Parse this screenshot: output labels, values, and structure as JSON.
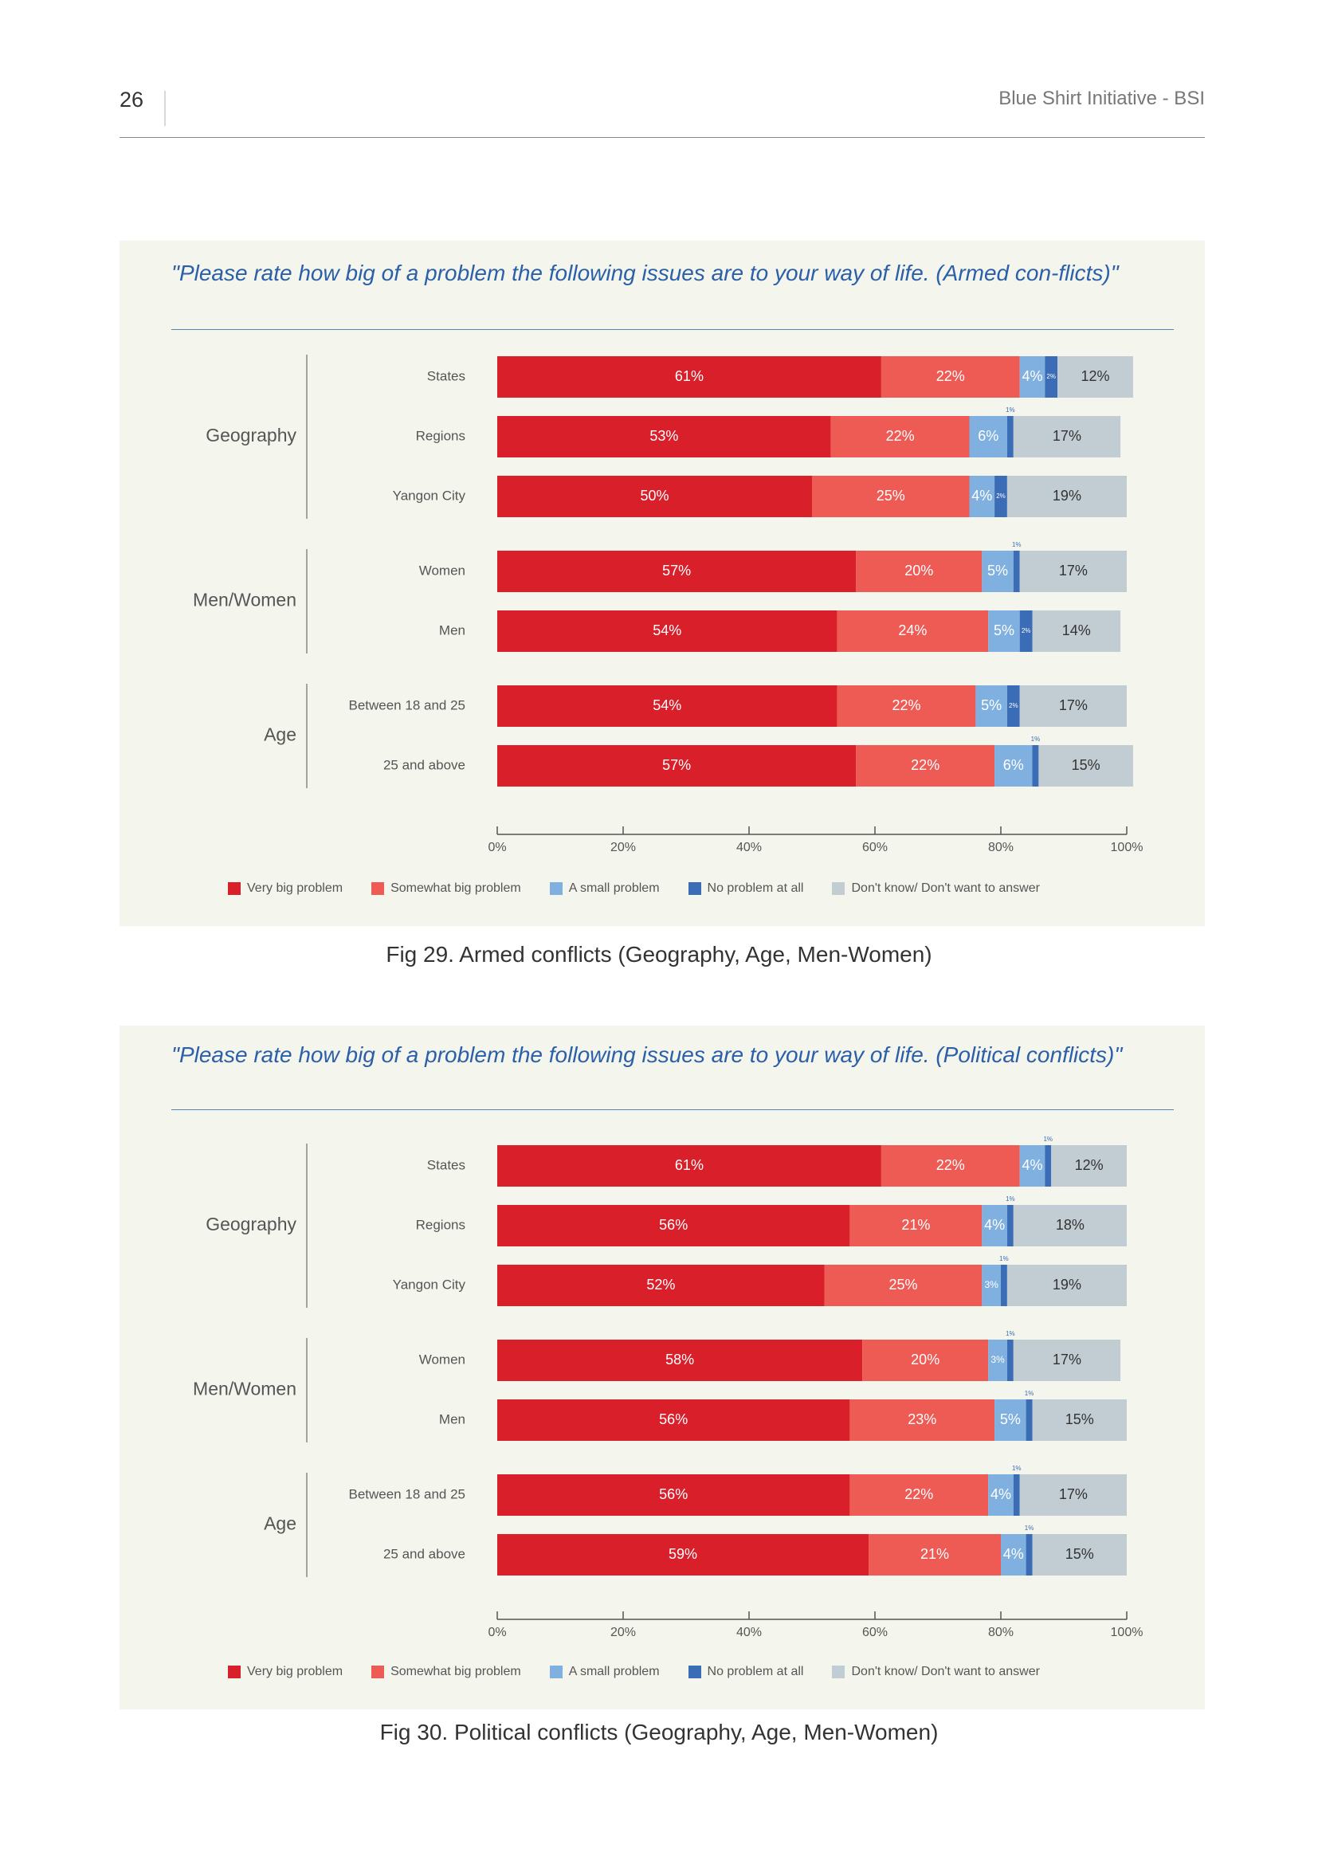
{
  "header": {
    "page_number": "26",
    "title": "Blue Shirt Initiative - BSI"
  },
  "colors": {
    "very_big": "#d81f2a",
    "somewhat_big": "#ee5a54",
    "small": "#7fb0df",
    "no_problem": "#3a6db5",
    "dont_know": "#c2ccd3",
    "panel_bg": "#f4f6ee",
    "question_text": "#2b5fa8"
  },
  "legend": [
    "Very big problem",
    "Somewhat big problem",
    "A small problem",
    "No problem at all",
    "Don't know/ Don't want to answer"
  ],
  "charts": [
    {
      "question": "\"Please rate how big of a problem the following issues are to your way of life. (Armed con-flicts)\"",
      "caption": "Fig 29. Armed conflicts (Geography, Age, Men-Women)"
    },
    {
      "question": "\"Please rate how big of a problem the following issues are to your way of life. (Political conflicts)\"",
      "caption": "Fig 30. Political conflicts (Geography, Age, Men-Women)"
    }
  ],
  "chart_data": [
    {
      "type": "bar",
      "orientation": "horizontal",
      "stacked": true,
      "title": "\"Please rate how big of a problem the following issues are to your way of life. (Armed con-flicts)\"",
      "xlim": [
        0,
        100
      ],
      "x_ticks": [
        "0%",
        "20%",
        "40%",
        "60%",
        "80%",
        "100%"
      ],
      "series_names": [
        "Very big problem",
        "Somewhat big problem",
        "A small problem",
        "No problem at all",
        "Don't know/ Don't want to answer"
      ],
      "groups": [
        {
          "name": "Geography",
          "rows": [
            {
              "label": "States",
              "values": [
                61,
                22,
                4,
                2,
                12
              ],
              "labels": [
                "61%",
                "22%",
                "4%",
                "2%",
                "12%"
              ]
            },
            {
              "label": "Regions",
              "values": [
                53,
                22,
                6,
                1,
                17
              ],
              "labels": [
                "53%",
                "22%",
                "6%",
                "1%",
                "17%"
              ]
            },
            {
              "label": "Yangon City",
              "values": [
                50,
                25,
                4,
                2,
                19
              ],
              "labels": [
                "50%",
                "25%",
                "4%",
                "2%",
                "19%"
              ]
            }
          ]
        },
        {
          "name": "Men/Women",
          "rows": [
            {
              "label": "Women",
              "values": [
                57,
                20,
                5,
                1,
                17
              ],
              "labels": [
                "57%",
                "20%",
                "5%",
                "1%",
                "17%"
              ]
            },
            {
              "label": "Men",
              "values": [
                54,
                24,
                5,
                2,
                14
              ],
              "labels": [
                "54%",
                "24%",
                "5%",
                "2%",
                "14%"
              ]
            }
          ]
        },
        {
          "name": "Age",
          "rows": [
            {
              "label": "Between 18 and 25",
              "values": [
                54,
                22,
                5,
                2,
                17
              ],
              "labels": [
                "54%",
                "22%",
                "5%",
                "2%",
                "17%"
              ]
            },
            {
              "label": "25 and above",
              "values": [
                57,
                22,
                6,
                1,
                15
              ],
              "labels": [
                "57%",
                "22%",
                "6%",
                "1%",
                "15%"
              ]
            }
          ]
        }
      ],
      "legend_position": "bottom"
    },
    {
      "type": "bar",
      "orientation": "horizontal",
      "stacked": true,
      "title": "\"Please rate how big of a problem the following issues are to your way of life. (Political conflicts)\"",
      "xlim": [
        0,
        100
      ],
      "x_ticks": [
        "0%",
        "20%",
        "40%",
        "60%",
        "80%",
        "100%"
      ],
      "series_names": [
        "Very big problem",
        "Somewhat big problem",
        "A small problem",
        "No problem at all",
        "Don't know/ Don't want to answer"
      ],
      "groups": [
        {
          "name": "Geography",
          "rows": [
            {
              "label": "States",
              "values": [
                61,
                22,
                4,
                1,
                12
              ],
              "labels": [
                "61%",
                "22%",
                "4%",
                "1%",
                "12%"
              ]
            },
            {
              "label": "Regions",
              "values": [
                56,
                21,
                4,
                1,
                18
              ],
              "labels": [
                "56%",
                "21%",
                "4%",
                "1%",
                "18%"
              ]
            },
            {
              "label": "Yangon City",
              "values": [
                52,
                25,
                3,
                1,
                19
              ],
              "labels": [
                "52%",
                "25%",
                "3%",
                "1%",
                "19%"
              ]
            }
          ]
        },
        {
          "name": "Men/Women",
          "rows": [
            {
              "label": "Women",
              "values": [
                58,
                20,
                3,
                1,
                17
              ],
              "labels": [
                "58%",
                "20%",
                "3%",
                "1%",
                "17%"
              ]
            },
            {
              "label": "Men",
              "values": [
                56,
                23,
                5,
                1,
                15
              ],
              "labels": [
                "56%",
                "23%",
                "5%",
                "1%",
                "15%"
              ]
            }
          ]
        },
        {
          "name": "Age",
          "rows": [
            {
              "label": "Between 18 and 25",
              "values": [
                56,
                22,
                4,
                1,
                17
              ],
              "labels": [
                "56%",
                "22%",
                "4%",
                "1%",
                "17%"
              ]
            },
            {
              "label": "25 and above",
              "values": [
                59,
                21,
                4,
                1,
                15
              ],
              "labels": [
                "59%",
                "21%",
                "4%",
                "1%",
                "15%"
              ]
            }
          ]
        }
      ],
      "legend_position": "bottom"
    }
  ]
}
